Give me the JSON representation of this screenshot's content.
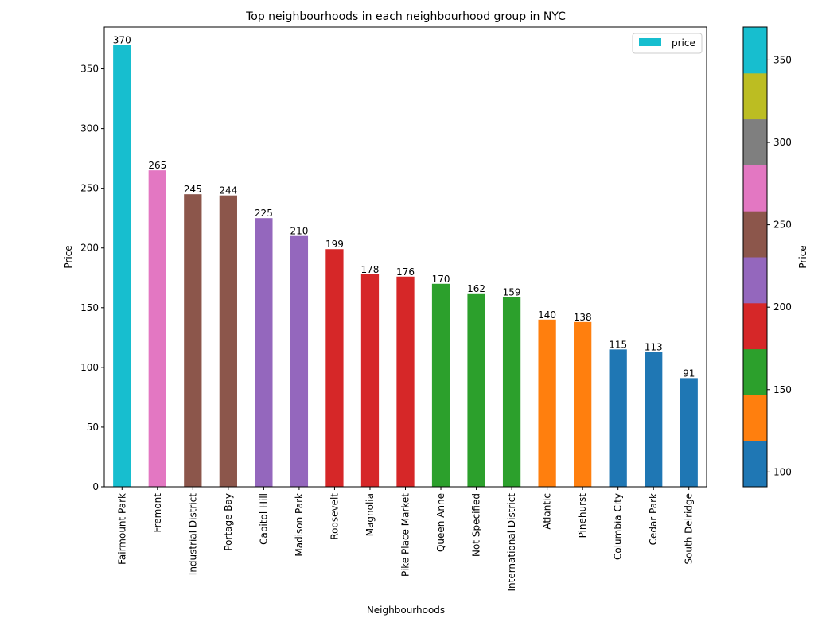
{
  "chart_data": {
    "type": "bar",
    "title": "Top neighbourhoods in each neighbourhood group in NYC",
    "xlabel": "Neighbourhoods",
    "ylabel": "Price",
    "ylim": [
      0,
      385
    ],
    "yticks": [
      0,
      50,
      100,
      150,
      200,
      250,
      300,
      350
    ],
    "grid": false,
    "legend": {
      "placement": "top-right",
      "entries": [
        "price"
      ]
    },
    "categories": [
      "Fairmount Park",
      "Fremont",
      "Industrial District",
      "Portage Bay",
      "Capitol Hill",
      "Madison Park",
      "Roosevelt",
      "Magnolia",
      "Pike Place Market",
      "Queen Anne",
      "Not Specified",
      "International District",
      "Atlantic",
      "Pinehurst",
      "Columbia City",
      "Cedar Park",
      "South Delridge"
    ],
    "series": [
      {
        "name": "price",
        "values": [
          370,
          265,
          245,
          244,
          225,
          210,
          199,
          178,
          176,
          170,
          162,
          159,
          140,
          138,
          115,
          113,
          91
        ]
      }
    ],
    "bar_colors": [
      "#17becf",
      "#e377c2",
      "#8c564b",
      "#8c564b",
      "#9467bd",
      "#9467bd",
      "#d62728",
      "#d62728",
      "#d62728",
      "#2ca02c",
      "#2ca02c",
      "#2ca02c",
      "#ff7f0e",
      "#ff7f0e",
      "#1f77b4",
      "#1f77b4",
      "#1f77b4"
    ],
    "colorbar": {
      "label": "Price",
      "range": [
        91,
        370
      ],
      "ticks": [
        100,
        150,
        200,
        250,
        300,
        350
      ],
      "colors": [
        "#1f77b4",
        "#ff7f0e",
        "#2ca02c",
        "#d62728",
        "#9467bd",
        "#8c564b",
        "#e377c2",
        "#7f7f7f",
        "#bcbd22",
        "#17becf"
      ]
    }
  }
}
